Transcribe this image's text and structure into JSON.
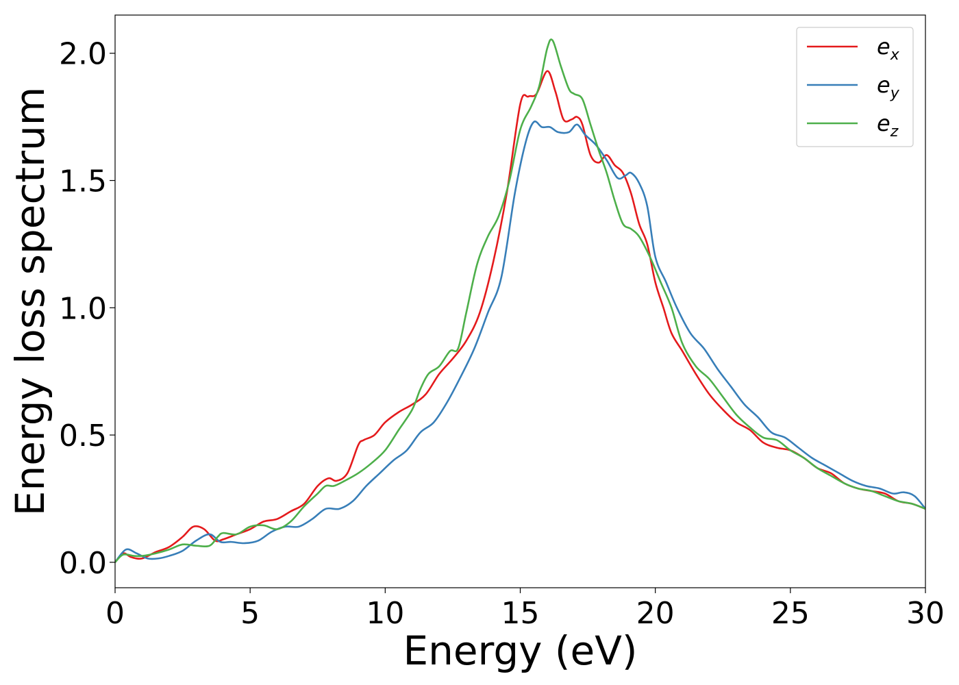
{
  "chart_data": {
    "type": "line",
    "xlabel": "Energy (eV)",
    "ylabel": "Energy loss spectrum",
    "xlim": [
      0,
      30
    ],
    "ylim": [
      -0.1,
      2.15
    ],
    "xticks": [
      "0",
      "5",
      "10",
      "15",
      "20",
      "25",
      "30"
    ],
    "yticks": [
      "0.0",
      "0.5",
      "1.0",
      "1.5",
      "2.0"
    ],
    "grid": false,
    "legend_position": "top-right",
    "series": [
      {
        "name": "e_x",
        "legend_base": "e",
        "legend_sub": "x",
        "color": "#e41a1c",
        "x": [
          0,
          0.3,
          0.6,
          1.0,
          1.5,
          2.0,
          2.5,
          2.9,
          3.3,
          3.7,
          4.0,
          4.5,
          5.0,
          5.5,
          6.0,
          6.5,
          7.0,
          7.5,
          7.9,
          8.2,
          8.6,
          9.0,
          9.2,
          9.6,
          10.0,
          10.5,
          11.0,
          11.5,
          12.0,
          12.5,
          13.0,
          13.5,
          14.0,
          14.5,
          15.0,
          15.3,
          15.6,
          16.0,
          16.3,
          16.6,
          16.9,
          17.1,
          17.3,
          17.6,
          17.9,
          18.2,
          18.5,
          18.8,
          19.1,
          19.4,
          19.7,
          20.0,
          20.3,
          20.6,
          21.0,
          21.5,
          22.0,
          22.5,
          23.0,
          23.5,
          24.0,
          24.5,
          25.0,
          25.5,
          26.0,
          26.5,
          27.0,
          27.5,
          28.0,
          28.5,
          29.0,
          29.5,
          30.0
        ],
        "y": [
          0.0,
          0.035,
          0.02,
          0.015,
          0.04,
          0.06,
          0.1,
          0.14,
          0.13,
          0.085,
          0.09,
          0.11,
          0.13,
          0.16,
          0.17,
          0.2,
          0.23,
          0.3,
          0.33,
          0.32,
          0.35,
          0.46,
          0.48,
          0.5,
          0.55,
          0.59,
          0.62,
          0.66,
          0.74,
          0.8,
          0.87,
          0.98,
          1.18,
          1.45,
          1.8,
          1.83,
          1.84,
          1.93,
          1.85,
          1.74,
          1.74,
          1.75,
          1.72,
          1.6,
          1.57,
          1.6,
          1.56,
          1.53,
          1.45,
          1.33,
          1.25,
          1.1,
          1.0,
          0.9,
          0.83,
          0.74,
          0.66,
          0.6,
          0.55,
          0.52,
          0.47,
          0.45,
          0.44,
          0.41,
          0.37,
          0.35,
          0.31,
          0.29,
          0.28,
          0.27,
          0.24,
          0.23,
          0.21
        ]
      },
      {
        "name": "e_y",
        "legend_base": "e",
        "legend_sub": "y",
        "color": "#377eb8",
        "x": [
          0,
          0.4,
          0.8,
          1.2,
          1.6,
          2.0,
          2.5,
          3.0,
          3.5,
          3.9,
          4.3,
          4.8,
          5.3,
          5.8,
          6.3,
          6.8,
          7.3,
          7.8,
          8.3,
          8.8,
          9.3,
          9.8,
          10.3,
          10.8,
          11.3,
          11.8,
          12.3,
          12.8,
          13.3,
          13.8,
          14.3,
          14.8,
          15.2,
          15.5,
          15.8,
          16.1,
          16.4,
          16.8,
          17.1,
          17.4,
          17.8,
          18.2,
          18.6,
          18.9,
          19.1,
          19.4,
          19.7,
          20.0,
          20.4,
          20.8,
          21.3,
          21.8,
          22.3,
          22.8,
          23.3,
          23.8,
          24.3,
          24.8,
          25.3,
          25.8,
          26.3,
          26.8,
          27.3,
          27.8,
          28.3,
          28.8,
          29.2,
          29.6,
          30.0
        ],
        "y": [
          0.0,
          0.05,
          0.035,
          0.015,
          0.015,
          0.025,
          0.045,
          0.085,
          0.11,
          0.08,
          0.08,
          0.075,
          0.085,
          0.12,
          0.14,
          0.14,
          0.17,
          0.21,
          0.21,
          0.24,
          0.3,
          0.35,
          0.4,
          0.44,
          0.51,
          0.55,
          0.63,
          0.73,
          0.84,
          0.98,
          1.12,
          1.45,
          1.65,
          1.73,
          1.71,
          1.71,
          1.69,
          1.69,
          1.72,
          1.68,
          1.64,
          1.58,
          1.51,
          1.52,
          1.53,
          1.49,
          1.4,
          1.2,
          1.1,
          1.0,
          0.9,
          0.84,
          0.76,
          0.69,
          0.62,
          0.57,
          0.51,
          0.49,
          0.45,
          0.41,
          0.38,
          0.35,
          0.32,
          0.3,
          0.29,
          0.27,
          0.275,
          0.26,
          0.21
        ]
      },
      {
        "name": "e_z",
        "legend_base": "e",
        "legend_sub": "z",
        "color": "#4daf4a",
        "x": [
          0,
          0.3,
          0.7,
          1.0,
          1.5,
          2.0,
          2.5,
          3.0,
          3.5,
          3.8,
          4.0,
          4.5,
          5.0,
          5.5,
          6.0,
          6.5,
          7.0,
          7.5,
          7.8,
          8.1,
          8.5,
          9.0,
          9.5,
          10.0,
          10.5,
          11.0,
          11.3,
          11.6,
          12.0,
          12.4,
          12.7,
          13.0,
          13.4,
          13.8,
          14.2,
          14.6,
          15.0,
          15.4,
          15.7,
          16.0,
          16.2,
          16.5,
          16.8,
          17.0,
          17.3,
          17.6,
          17.9,
          18.2,
          18.5,
          18.8,
          19.1,
          19.4,
          19.8,
          20.2,
          20.6,
          21.0,
          21.5,
          22.0,
          22.5,
          23.0,
          23.5,
          24.0,
          24.5,
          25.0,
          25.5,
          26.0,
          26.5,
          27.0,
          27.5,
          28.0,
          28.5,
          29.0,
          29.5,
          30.0
        ],
        "y": [
          0.0,
          0.03,
          0.025,
          0.025,
          0.035,
          0.05,
          0.07,
          0.065,
          0.065,
          0.1,
          0.115,
          0.11,
          0.14,
          0.145,
          0.13,
          0.16,
          0.22,
          0.27,
          0.3,
          0.3,
          0.32,
          0.35,
          0.39,
          0.44,
          0.52,
          0.6,
          0.68,
          0.74,
          0.77,
          0.83,
          0.84,
          0.98,
          1.17,
          1.28,
          1.36,
          1.5,
          1.7,
          1.79,
          1.87,
          2.02,
          2.05,
          1.95,
          1.86,
          1.84,
          1.82,
          1.72,
          1.62,
          1.53,
          1.42,
          1.33,
          1.31,
          1.28,
          1.2,
          1.1,
          1.0,
          0.86,
          0.77,
          0.72,
          0.65,
          0.58,
          0.53,
          0.49,
          0.48,
          0.44,
          0.41,
          0.37,
          0.34,
          0.31,
          0.29,
          0.28,
          0.26,
          0.24,
          0.23,
          0.21
        ]
      }
    ]
  }
}
